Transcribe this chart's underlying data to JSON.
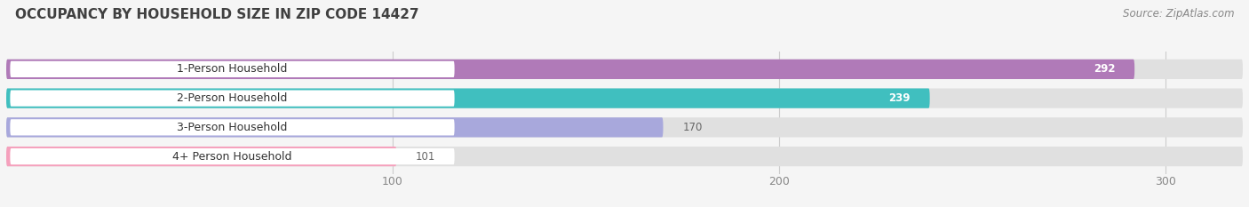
{
  "title": "OCCUPANCY BY HOUSEHOLD SIZE IN ZIP CODE 14427",
  "source": "Source: ZipAtlas.com",
  "categories": [
    "1-Person Household",
    "2-Person Household",
    "3-Person Household",
    "4+ Person Household"
  ],
  "values": [
    292,
    239,
    170,
    101
  ],
  "bar_colors": [
    "#b07ab8",
    "#40bfbf",
    "#a8a8dc",
    "#f5a0bc"
  ],
  "label_colors": [
    "white",
    "white",
    "#666666",
    "#666666"
  ],
  "xlim": [
    0,
    320
  ],
  "xticks": [
    100,
    200,
    300
  ],
  "background_color": "#f5f5f5",
  "bar_background_color": "#e0e0e0",
  "title_fontsize": 11,
  "source_fontsize": 8.5,
  "label_fontsize": 9,
  "value_fontsize": 8.5,
  "tick_fontsize": 9
}
